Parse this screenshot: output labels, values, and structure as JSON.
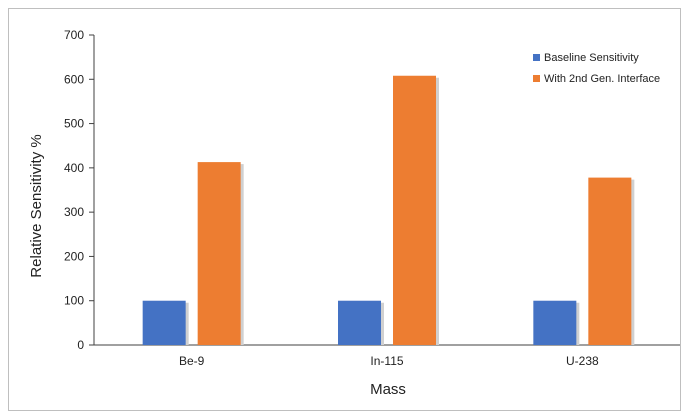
{
  "chart_data": {
    "type": "bar",
    "categories": [
      "Be-9",
      "In-115",
      "U-238"
    ],
    "series": [
      {
        "name": "Baseline Sensitivity",
        "color": "#4472c4",
        "values": [
          100,
          100,
          100
        ]
      },
      {
        "name": "With 2nd Gen. Interface",
        "color": "#ed7d31",
        "values": [
          413,
          608,
          378
        ]
      }
    ],
    "title": "",
    "xlabel": "Mass",
    "ylabel": "Relative Sensitivity %",
    "ylim": [
      0,
      700
    ],
    "yticks": [
      0,
      100,
      200,
      300,
      400,
      500,
      600,
      700
    ],
    "grid": false,
    "legend_position": "top-right"
  }
}
